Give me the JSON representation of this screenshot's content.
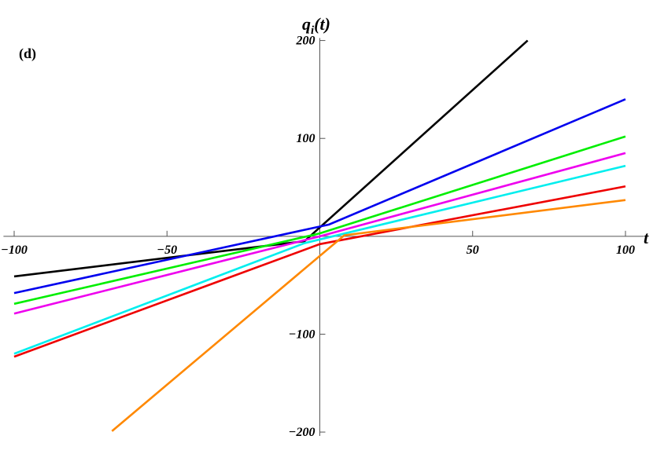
{
  "chart_data": {
    "type": "line",
    "panel_label": "(d)",
    "x_label": "t",
    "y_label": {
      "base": "q",
      "sub": "i",
      "rest": "(t)"
    },
    "xlim": [
      -103.5,
      106
    ],
    "ylim": [
      -220,
      217
    ],
    "xticks": [
      {
        "value": -100,
        "label": "−100"
      },
      {
        "value": -50,
        "label": "−50"
      },
      50,
      100
    ],
    "yticks": [
      {
        "value": -200,
        "label": "−200"
      },
      {
        "value": -100,
        "label": "−100"
      },
      100,
      200
    ],
    "series": [
      {
        "color": "#000000",
        "x": [
          -100,
          -5,
          68
        ],
        "values": [
          -41,
          -5,
          200
        ]
      },
      {
        "color": "#0000ee",
        "x": [
          -100,
          3,
          100
        ],
        "values": [
          -58,
          12,
          140
        ]
      },
      {
        "color": "#00ee00",
        "x": [
          -100,
          0,
          100
        ],
        "values": [
          -69,
          3,
          102
        ]
      },
      {
        "color": "#ee00ee",
        "x": [
          -100,
          0,
          100
        ],
        "values": [
          -79,
          0,
          85
        ]
      },
      {
        "color": "#00eeee",
        "x": [
          -100,
          -5,
          100
        ],
        "values": [
          -120,
          -7,
          72
        ]
      },
      {
        "color": "#ee0000",
        "x": [
          -100,
          0,
          100
        ],
        "values": [
          -123,
          -8,
          51
        ]
      },
      {
        "color": "#ff8800",
        "x": [
          -68,
          8,
          100
        ],
        "values": [
          -199,
          1,
          37
        ]
      }
    ]
  }
}
